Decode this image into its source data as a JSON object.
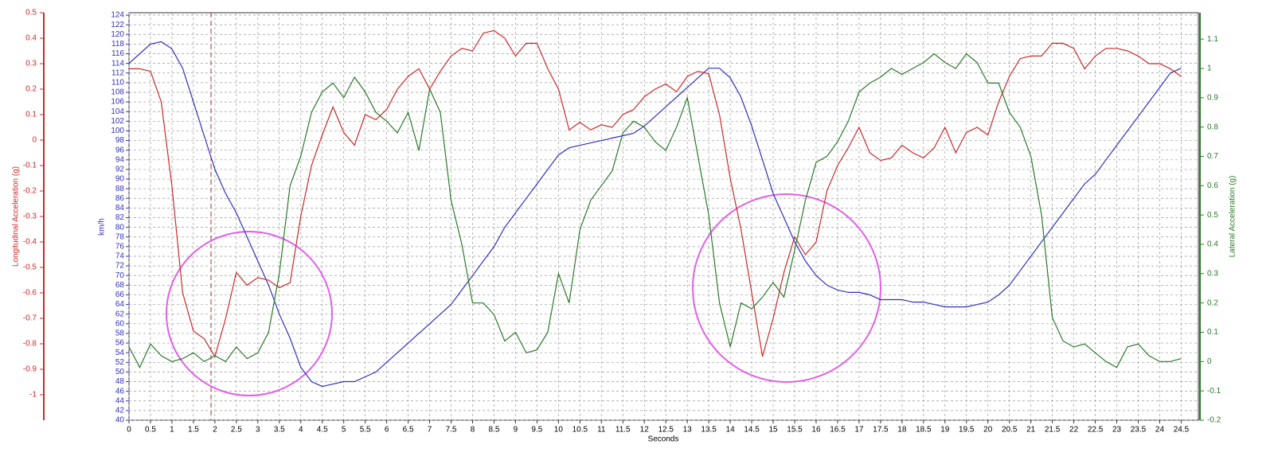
{
  "chart_data": {
    "type": "line",
    "x_label": "Seconds",
    "y_label": "km/h",
    "y2_label": "Lateral Acceleration (g)",
    "y3_label": "Longitudinal Acceleration (g)",
    "x": [
      0,
      0.25,
      0.5,
      0.75,
      1,
      1.25,
      1.5,
      1.75,
      2,
      2.25,
      2.5,
      2.75,
      3,
      3.25,
      3.5,
      3.75,
      4,
      4.25,
      4.5,
      4.75,
      5,
      5.25,
      5.5,
      5.75,
      6,
      6.25,
      6.5,
      6.75,
      7,
      7.25,
      7.5,
      7.75,
      8,
      8.25,
      8.5,
      8.75,
      9,
      9.25,
      9.5,
      9.75,
      10,
      10.25,
      10.5,
      10.75,
      11,
      11.25,
      11.5,
      11.75,
      12,
      12.25,
      12.5,
      12.75,
      13,
      13.25,
      13.5,
      13.75,
      14,
      14.25,
      14.5,
      14.75,
      15,
      15.25,
      15.5,
      15.75,
      16,
      16.25,
      16.5,
      16.75,
      17,
      17.25,
      17.5,
      17.75,
      18,
      18.25,
      18.5,
      18.75,
      19,
      19.25,
      19.5,
      19.75,
      20,
      20.25,
      20.5,
      20.75,
      21,
      21.25,
      21.5,
      21.75,
      22,
      22.25,
      22.5,
      22.75,
      23,
      23.25,
      23.5,
      23.75,
      24,
      24.25,
      24.5
    ],
    "xlim": [
      0,
      24.9
    ],
    "xticks": [
      0,
      0.5,
      1,
      1.5,
      2,
      2.5,
      3,
      3.5,
      4,
      4.5,
      5,
      5.5,
      6,
      6.5,
      7,
      7.5,
      8,
      8.5,
      9,
      9.5,
      10,
      10.5,
      11,
      11.5,
      12,
      12.5,
      13,
      13.5,
      14,
      14.5,
      15,
      15.5,
      16,
      16.5,
      17,
      17.5,
      18,
      18.5,
      19,
      19.5,
      20,
      20.5,
      21,
      21.5,
      22,
      22.5,
      23,
      23.5,
      24,
      24.5
    ],
    "ylim": [
      40,
      124.5
    ],
    "yticks": [
      40,
      42,
      44,
      46,
      48,
      50,
      52,
      54,
      56,
      58,
      60,
      62,
      64,
      66,
      68,
      70,
      72,
      74,
      76,
      78,
      80,
      82,
      84,
      86,
      88,
      90,
      92,
      94,
      96,
      98,
      100,
      102,
      104,
      106,
      108,
      110,
      112,
      114,
      116,
      118,
      120,
      122,
      124
    ],
    "y2lim": [
      -0.2,
      1.19
    ],
    "y2ticks": [
      -0.2,
      -0.1,
      0,
      0.1,
      0.2,
      0.3,
      0.4,
      0.5,
      0.6,
      0.7,
      0.8,
      0.9,
      1,
      1.1
    ],
    "y3lim": [
      -1.1,
      0.5
    ],
    "y3ticks": [
      0.5,
      0.4,
      0.3,
      0.2,
      0.1,
      0,
      -0.1,
      -0.2,
      -0.3,
      -0.4,
      -0.5,
      -0.6,
      -0.7,
      -0.8,
      -0.9,
      -1
    ],
    "grid": true,
    "series": [
      {
        "color": "#3030c0",
        "axis": "y",
        "values": [
          114,
          116,
          118,
          118.5,
          117,
          113,
          106,
          99,
          92,
          87,
          83,
          78,
          73,
          68,
          62,
          57,
          51,
          48,
          47,
          47.5,
          48,
          48,
          49,
          50,
          52,
          54,
          56,
          58,
          60,
          62,
          64,
          67,
          70,
          73,
          76,
          80,
          83,
          86,
          89,
          92,
          95,
          96.5,
          97,
          97.5,
          98,
          98.5,
          99,
          99.5,
          101,
          103,
          105,
          107,
          109,
          111,
          113,
          113,
          111,
          107,
          101,
          94,
          87,
          82,
          77,
          73,
          70,
          68,
          67,
          66.5,
          66.5,
          66,
          65,
          65,
          65,
          64.5,
          64.5,
          64,
          63.5,
          63.5,
          63.5,
          64,
          64.5,
          66,
          68,
          71,
          74,
          77,
          80,
          83,
          86,
          89,
          91,
          94,
          97,
          100,
          103,
          106,
          109,
          112,
          113
        ]
      },
      {
        "color": "#cc2a2a",
        "axis": "y3",
        "values": [
          0.28,
          0.28,
          0.27,
          0.15,
          -0.18,
          -0.6,
          -0.75,
          -0.78,
          -0.85,
          -0.7,
          -0.52,
          -0.57,
          -0.54,
          -0.55,
          -0.58,
          -0.56,
          -0.3,
          -0.1,
          0.02,
          0.13,
          0.03,
          -0.02,
          0.1,
          0.08,
          0.12,
          0.2,
          0.25,
          0.28,
          0.2,
          0.27,
          0.33,
          0.36,
          0.35,
          0.42,
          0.43,
          0.4,
          0.33,
          0.38,
          0.38,
          0.28,
          0.2,
          0.04,
          0.07,
          0.04,
          0.06,
          0.05,
          0.1,
          0.12,
          0.17,
          0.2,
          0.22,
          0.19,
          0.25,
          0.27,
          0.26,
          0.1,
          -0.15,
          -0.35,
          -0.6,
          -0.85,
          -0.7,
          -0.52,
          -0.38,
          -0.45,
          -0.4,
          -0.2,
          -0.1,
          -0.03,
          0.05,
          -0.05,
          -0.08,
          -0.07,
          -0.02,
          -0.05,
          -0.07,
          -0.03,
          0.05,
          -0.05,
          0.03,
          0.05,
          0.02,
          0.15,
          0.25,
          0.32,
          0.33,
          0.33,
          0.38,
          0.38,
          0.36,
          0.28,
          0.33,
          0.36,
          0.36,
          0.35,
          0.33,
          0.3,
          0.3,
          0.28,
          0.25
        ]
      },
      {
        "color": "#2a7a2a",
        "axis": "y2",
        "values": [
          0.05,
          -0.02,
          0.06,
          0.02,
          0,
          0.01,
          0.03,
          0,
          0.02,
          0,
          0.05,
          0.01,
          0.03,
          0.1,
          0.3,
          0.6,
          0.7,
          0.85,
          0.92,
          0.95,
          0.9,
          0.97,
          0.92,
          0.85,
          0.82,
          0.78,
          0.85,
          0.72,
          0.93,
          0.85,
          0.55,
          0.4,
          0.2,
          0.2,
          0.16,
          0.07,
          0.1,
          0.03,
          0.04,
          0.1,
          0.3,
          0.2,
          0.45,
          0.55,
          0.6,
          0.65,
          0.78,
          0.82,
          0.8,
          0.75,
          0.72,
          0.8,
          0.9,
          0.7,
          0.5,
          0.2,
          0.05,
          0.2,
          0.18,
          0.22,
          0.27,
          0.22,
          0.38,
          0.55,
          0.68,
          0.7,
          0.75,
          0.82,
          0.92,
          0.95,
          0.97,
          1,
          0.98,
          1,
          1.02,
          1.05,
          1.02,
          1,
          1.05,
          1.02,
          0.95,
          0.95,
          0.85,
          0.8,
          0.7,
          0.5,
          0.15,
          0.07,
          0.05,
          0.06,
          0.03,
          0,
          -0.02,
          0.05,
          0.06,
          0.02,
          0,
          0,
          0.01
        ]
      }
    ]
  }
}
